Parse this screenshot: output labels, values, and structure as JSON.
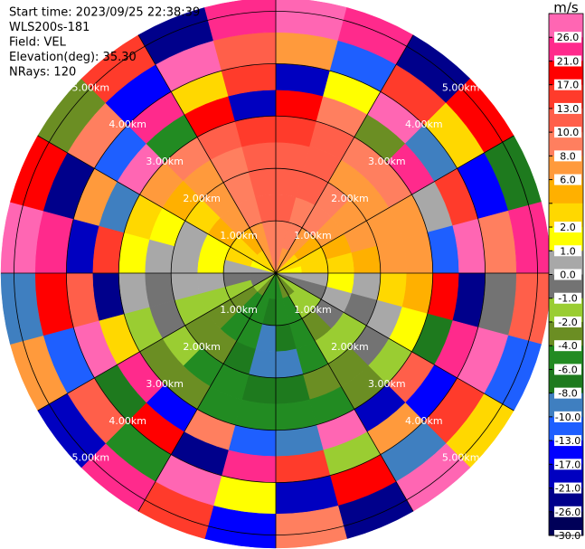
{
  "chart_data": {
    "type": "ppi",
    "header": [
      "Start time: 2023/09/25 22:38:39",
      "WLS200s-181",
      "Field: VEL",
      "Elevation(deg): 35.30",
      "NRays: 120"
    ],
    "azimuths": [
      0,
      15,
      30,
      45,
      60,
      75,
      90,
      105,
      120,
      135,
      150,
      165,
      180,
      195,
      210,
      225,
      240,
      255,
      270,
      285,
      300,
      315,
      330,
      345
    ],
    "ranges": [
      0,
      0.5,
      1,
      1.5,
      2,
      2.5,
      3,
      3.5,
      4,
      4.6,
      5.25
    ],
    "rings": [
      {
        "value": 1,
        "label": "1.00km"
      },
      {
        "value": 2,
        "label": "2.00km"
      },
      {
        "value": 3,
        "label": "3.00km"
      },
      {
        "value": 4,
        "label": "4.00km"
      },
      {
        "value": 5,
        "label": "5.00km"
      }
    ],
    "values": [
      [
        8,
        8,
        10,
        10,
        10,
        13,
        17,
        -21,
        6,
        26
      ],
      [
        6,
        8,
        8,
        10,
        10,
        10,
        8,
        1,
        -13,
        21
      ],
      [
        6,
        6,
        8,
        8,
        6,
        8,
        -4,
        26,
        13,
        -26
      ],
      [
        2,
        4,
        6,
        6,
        6,
        8,
        21,
        -10,
        2,
        17
      ],
      [
        2,
        2,
        4,
        6,
        6,
        6,
        0,
        13,
        -17,
        -8
      ],
      [
        1,
        2,
        2,
        4,
        6,
        6,
        -13,
        26,
        8,
        21
      ],
      [
        0,
        0,
        1,
        0,
        2,
        4,
        17,
        -26,
        -1,
        10
      ],
      [
        -1,
        -1,
        0,
        -1,
        0,
        1,
        -8,
        21,
        26,
        -13
      ],
      [
        -2,
        -2,
        -1,
        -2,
        -1,
        -2,
        10,
        -17,
        13,
        2
      ],
      [
        -4,
        -2,
        -4,
        -2,
        -4,
        -4,
        -21,
        6,
        -10,
        26
      ],
      [
        -4,
        -6,
        -6,
        -6,
        -4,
        -6,
        26,
        -2,
        17,
        -26
      ],
      [
        -6,
        -6,
        -8,
        -10,
        -8,
        -6,
        -10,
        13,
        -21,
        8
      ],
      [
        -6,
        -8,
        -10,
        -10,
        -8,
        -6,
        -13,
        21,
        1,
        -17
      ],
      [
        -6,
        -6,
        -6,
        -8,
        -6,
        -6,
        8,
        -26,
        26,
        13
      ],
      [
        -4,
        -6,
        -6,
        -4,
        -6,
        -4,
        -17,
        17,
        -6,
        21
      ],
      [
        -2,
        -4,
        -4,
        -4,
        -2,
        -4,
        21,
        -8,
        10,
        -21
      ],
      [
        -1,
        -2,
        -2,
        -2,
        -1,
        -2,
        2,
        26,
        -13,
        6
      ],
      [
        -1,
        -1,
        0,
        0,
        -1,
        0,
        -26,
        10,
        17,
        -10
      ],
      [
        0,
        0,
        1,
        0,
        0,
        1,
        13,
        -21,
        21,
        26
      ],
      [
        1,
        2,
        1,
        0,
        1,
        2,
        -10,
        6,
        -26,
        17
      ],
      [
        2,
        2,
        4,
        2,
        4,
        6,
        26,
        -13,
        8,
        -4
      ],
      [
        2,
        4,
        6,
        6,
        6,
        8,
        -6,
        21,
        -17,
        13
      ],
      [
        6,
        6,
        8,
        8,
        8,
        10,
        17,
        2,
        26,
        -26
      ],
      [
        8,
        8,
        10,
        10,
        10,
        13,
        -21,
        13,
        10,
        21
      ]
    ],
    "colorbar": {
      "title": "m/s",
      "levels": [
        30,
        26,
        21,
        17,
        13,
        10,
        8,
        6,
        4,
        2,
        1,
        0,
        -1,
        -2,
        -4,
        -6,
        -8,
        -10,
        -13,
        -17,
        -21,
        -26,
        -30
      ],
      "colors": [
        "#ff66b3",
        "#ff2a8c",
        "#ff0000",
        "#ff3b2b",
        "#ff5f4a",
        "#ff7f5f",
        "#ff9a3c",
        "#ffb000",
        "#ffd800",
        "#ffff00",
        "#a8a8a8",
        "#737373",
        "#9acd32",
        "#6b8e23",
        "#228b22",
        "#1e7a1e",
        "#3f7fc0",
        "#1e5fff",
        "#0000ff",
        "#0000c0",
        "#00008b",
        "#000058"
      ],
      "ticks": [
        {
          "value": 26,
          "label": "26.0"
        },
        {
          "value": 21,
          "label": "21.0"
        },
        {
          "value": 17,
          "label": "17.0"
        },
        {
          "value": 13,
          "label": "13.0"
        },
        {
          "value": 10,
          "label": "10.0"
        },
        {
          "value": 8,
          "label": "8.0"
        },
        {
          "value": 6,
          "label": "6.0"
        },
        {
          "value": 2,
          "label": "2.0"
        },
        {
          "value": 1,
          "label": "1.0"
        },
        {
          "value": 0,
          "label": "0.0"
        },
        {
          "value": -1,
          "label": "-1.0"
        },
        {
          "value": -2,
          "label": "-2.0"
        },
        {
          "value": -4,
          "label": "-4.0"
        },
        {
          "value": -6,
          "label": "-6.0"
        },
        {
          "value": -8,
          "label": "-8.0"
        },
        {
          "value": -10,
          "label": "-10.0"
        },
        {
          "value": -13,
          "label": "-13.0"
        },
        {
          "value": -17,
          "label": "-17.0"
        },
        {
          "value": -21,
          "label": "-21.0"
        },
        {
          "value": -26,
          "label": "-26.0"
        },
        {
          "value": -30,
          "label": "-30.0"
        }
      ]
    }
  }
}
